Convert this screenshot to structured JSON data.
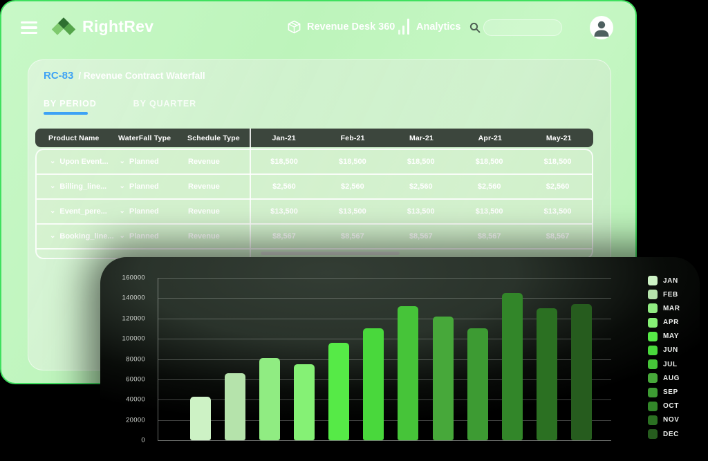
{
  "header": {
    "brand": "RightRev",
    "nav_product": "Revenue Desk 360",
    "nav_analytics": "Analytics",
    "search_placeholder": ""
  },
  "page": {
    "breadcrumb_id": "RC-83",
    "breadcrumb_title": "/ Revenue Contract Waterfall",
    "tabs": [
      {
        "label": "BY PERIOD",
        "active": true
      },
      {
        "label": "BY QUARTER",
        "active": false
      }
    ]
  },
  "table": {
    "columns": [
      "Product Name",
      "WaterFall Type",
      "Schedule Type",
      "Jan-21",
      "Feb-21",
      "Mar-21",
      "Apr-21",
      "May-21"
    ],
    "rows": [
      {
        "product": "Upon Event...",
        "waterfall": "Planned",
        "schedule": "Revenue",
        "values": [
          "$18,500",
          "$18,500",
          "$18,500",
          "$18,500",
          "$18,500"
        ]
      },
      {
        "product": "Billing_line...",
        "waterfall": "Planned",
        "schedule": "Revenue",
        "values": [
          "$2,560",
          "$2,560",
          "$2,560",
          "$2,560",
          "$2,560"
        ]
      },
      {
        "product": "Event_pere...",
        "waterfall": "Planned",
        "schedule": "Revenue",
        "values": [
          "$13,500",
          "$13,500",
          "$13,500",
          "$13,500",
          "$13,500"
        ]
      },
      {
        "product": "Booking_line...",
        "waterfall": "Planned",
        "schedule": "Revenue",
        "values": [
          "$8,567",
          "$8,567",
          "$8,567",
          "$8,567",
          "$8,567"
        ]
      }
    ]
  },
  "icons": {
    "menu": "hamburger-icon",
    "package": "cube-outline-icon",
    "analytics": "bar-chart-icon",
    "search": "magnifier-icon",
    "avatar": "person-icon",
    "row_expand": "chevron-down-icon",
    "chevron_glyph": "⌄"
  },
  "colors": {
    "accent_blue": "#3da2f5",
    "window_border_green": "#3fe05f",
    "window_bg_green": "#c2f6c1",
    "table_header_bg": "#3c463d",
    "panel_bg_dark": "#2a332b"
  },
  "chart_data": {
    "type": "bar",
    "categories": [
      "JAN",
      "FEB",
      "MAR",
      "APR",
      "MAY",
      "JUN",
      "JUL",
      "AUG",
      "SEP",
      "OCT",
      "NOV",
      "DEC"
    ],
    "values": [
      43000,
      66000,
      81000,
      75000,
      96000,
      110000,
      132000,
      122000,
      110000,
      145000,
      130000,
      134000
    ],
    "bar_colors": [
      "#cdf2c5",
      "#b5e3ab",
      "#90ec82",
      "#85f175",
      "#56ea47",
      "#49d83c",
      "#46c439",
      "#47a83a",
      "#3d9b33",
      "#328629",
      "#2b7022",
      "#265c1e"
    ],
    "title": "",
    "xlabel": "",
    "ylabel": "",
    "ylim": [
      0,
      160000
    ],
    "ytick_step": 20000,
    "ytick_labels": [
      "160000",
      "140000",
      "120000",
      "100000",
      "80000",
      "60000",
      "40000",
      "20000",
      "0"
    ],
    "grid": true,
    "legend_position": "right"
  }
}
